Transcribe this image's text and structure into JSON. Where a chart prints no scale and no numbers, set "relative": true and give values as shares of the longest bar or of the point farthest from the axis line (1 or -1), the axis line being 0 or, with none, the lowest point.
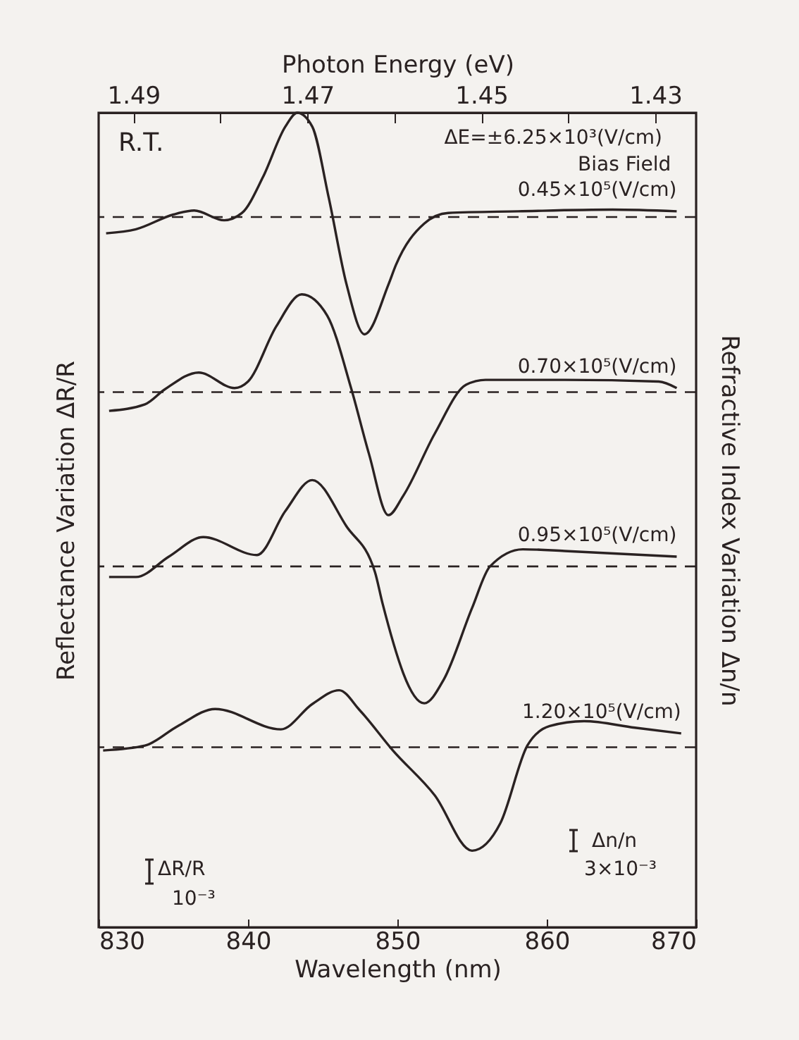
{
  "chart_data": {
    "type": "line",
    "relative": true,
    "xlabel": "Wavelength (nm)",
    "x2label": "Photon Energy (eV)",
    "ylabel": "Reflectance   Variation   ΔR/R",
    "y2label": "Refractive Index   Variation   Δn/n",
    "xlim": [
      830,
      870
    ],
    "xticks": [
      830,
      840,
      850,
      860,
      870
    ],
    "x2lim": [
      1.494,
      1.4253
    ],
    "x2ticks": [
      1.49,
      {
        "value": 1.48,
        "label": null
      },
      1.47,
      {
        "value": 1.46,
        "label": null
      },
      1.45,
      {
        "value": 1.44,
        "label": null
      },
      1.43
    ],
    "grid": false,
    "legend": false,
    "marker": "none",
    "line_style": "solid",
    "series": [
      {
        "name": "0.45×10⁵(V/cm)",
        "color": "#2a2222",
        "x": [
          830.5,
          832.5,
          835.0,
          836.4,
          838.4,
          839.6,
          841.0,
          842.5,
          843.3,
          844.3,
          845.4,
          846.6,
          847.8,
          849.4,
          849.9,
          851.8,
          853.4,
          858.1,
          864.4,
          868.7
        ],
        "values": [
          0.852,
          0.857,
          0.875,
          0.88,
          0.868,
          0.877,
          0.921,
          0.983,
          1.0,
          0.983,
          0.896,
          0.789,
          0.728,
          0.789,
          0.813,
          0.864,
          0.877,
          0.879,
          0.881,
          0.879
        ]
      },
      {
        "name": "0.70×10⁵(V/cm)",
        "color": "#2a2222",
        "x": [
          830.7,
          833.1,
          834.4,
          836.7,
          839.1,
          840.0,
          841.9,
          843.6,
          845.3,
          846.9,
          848.1,
          849.4,
          850.4,
          852.5,
          854.6,
          855.9,
          861.2,
          867.5,
          868.7
        ],
        "values": [
          0.634,
          0.642,
          0.66,
          0.681,
          0.662,
          0.67,
          0.738,
          0.777,
          0.751,
          0.662,
          0.581,
          0.506,
          0.53,
          0.606,
          0.666,
          0.672,
          0.672,
          0.67,
          0.662
        ]
      },
      {
        "name": "0.95×10⁵(V/cm)",
        "color": "#2a2222",
        "x": [
          830.7,
          832.5,
          834.7,
          837.0,
          840.6,
          842.5,
          844.3,
          846.6,
          848.5,
          849.0,
          851.8,
          853.1,
          855.0,
          856.2,
          858.4,
          861.2,
          868.7
        ],
        "values": [
          0.43,
          0.43,
          0.455,
          0.479,
          0.457,
          0.511,
          0.549,
          0.492,
          0.436,
          0.398,
          0.275,
          0.304,
          0.392,
          0.443,
          0.464,
          0.462,
          0.455
        ]
      },
      {
        "name": "1.20×10⁵(V/cm)",
        "color": "#2a2222",
        "x": [
          830.3,
          833.1,
          835.3,
          837.8,
          842.2,
          844.3,
          846.1,
          847.5,
          849.7,
          852.5,
          855.0,
          856.9,
          858.7,
          860.2,
          862.5,
          865.9,
          869.0
        ],
        "values": [
          0.217,
          0.223,
          0.247,
          0.268,
          0.243,
          0.274,
          0.291,
          0.266,
          0.217,
          0.162,
          0.094,
          0.128,
          0.223,
          0.247,
          0.253,
          0.245,
          0.238
        ]
      }
    ],
    "ref_lines": [
      {
        "axis": "y",
        "value": 0.872,
        "label": null,
        "line_style": "dashed"
      },
      {
        "axis": "y",
        "value": 0.657,
        "label": null,
        "line_style": "dashed"
      },
      {
        "axis": "y",
        "value": 0.443,
        "label": null,
        "line_style": "dashed"
      },
      {
        "axis": "y",
        "value": 0.221,
        "label": null,
        "line_style": "dashed"
      }
    ],
    "annotations": [
      "R.T.",
      "ΔE=±6.25×10³(V/cm)",
      "Bias Field",
      "ΔR/R",
      "10⁻³",
      "Δn/n",
      "3×10⁻³"
    ]
  }
}
